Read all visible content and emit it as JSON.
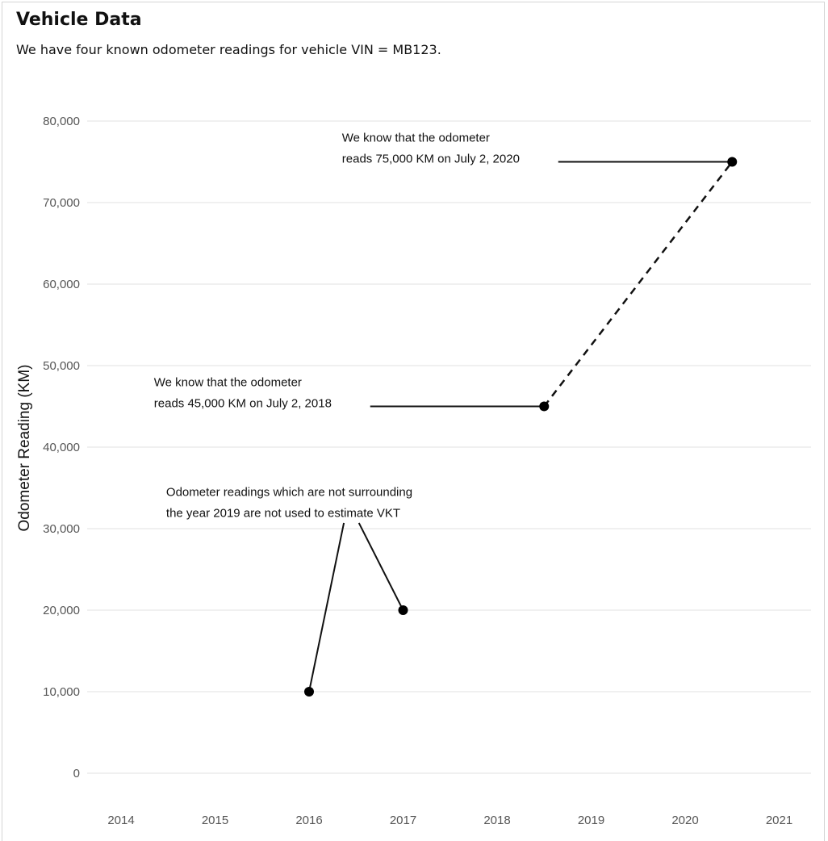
{
  "chart_data": {
    "type": "line",
    "title": "Vehicle Data",
    "subtitle": "We have four known odometer readings for vehicle VIN = MB123.",
    "xlabel": "",
    "ylabel": "Odometer Reading (KM)",
    "xlim": [
      2014,
      2021
    ],
    "ylim": [
      0,
      80000
    ],
    "x_ticks": [
      2014,
      2015,
      2016,
      2017,
      2018,
      2019,
      2020,
      2021
    ],
    "y_ticks": [
      0,
      10000,
      20000,
      30000,
      40000,
      50000,
      60000,
      70000,
      80000
    ],
    "y_tick_labels": [
      "0",
      "10,000",
      "20,000",
      "30,000",
      "40,000",
      "50,000",
      "60,000",
      "70,000",
      "80,000"
    ],
    "grid": "horizontal",
    "points": [
      {
        "x": 2016.0,
        "y": 10000
      },
      {
        "x": 2017.0,
        "y": 20000
      },
      {
        "x": 2018.5,
        "y": 45000
      },
      {
        "x": 2020.5,
        "y": 75000
      }
    ],
    "dashed_segment": {
      "from": [
        2018.5,
        45000
      ],
      "to": [
        2020.5,
        75000
      ]
    },
    "annotations": [
      {
        "lines": [
          "We know that the odometer",
          "reads 75,000 KM on July 2, 2020"
        ],
        "text_x": 2016.35,
        "text_y": 77500,
        "leader": [
          [
            2018.65,
            75000
          ],
          [
            2020.5,
            75000
          ]
        ]
      },
      {
        "lines": [
          "We know that the odometer",
          "reads 45,000 KM on July 2, 2018"
        ],
        "text_x": 2014.35,
        "text_y": 47500,
        "leader": [
          [
            2016.65,
            45000
          ],
          [
            2018.5,
            45000
          ]
        ]
      },
      {
        "lines": [
          "Odometer readings which are not surrounding",
          "the year 2019 are not used to estimate VKT"
        ],
        "text_x": 2014.48,
        "text_y": 34000,
        "leaders": [
          [
            [
              2016.37,
              30700
            ],
            [
              2016.0,
              10000
            ]
          ],
          [
            [
              2016.53,
              30700
            ],
            [
              2017.0,
              20000
            ]
          ]
        ]
      }
    ]
  }
}
